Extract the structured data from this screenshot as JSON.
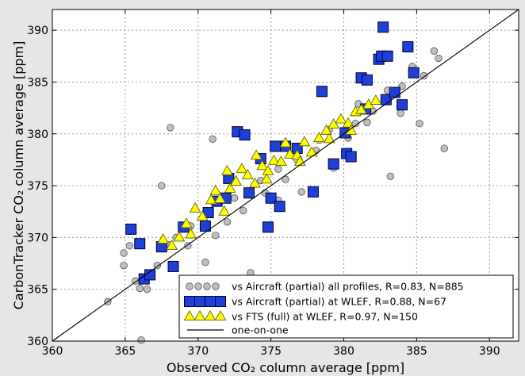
{
  "chart_data": {
    "type": "scatter",
    "title": "",
    "xlabel": "Observed CO₂ column average [ppm]",
    "ylabel": "CarbonTracker CO₂ column average [ppm]",
    "xlim": [
      360,
      392
    ],
    "ylim": [
      360,
      392
    ],
    "xticks": [
      360,
      365,
      370,
      375,
      380,
      385,
      390
    ],
    "yticks": [
      360,
      365,
      370,
      375,
      380,
      385,
      390
    ],
    "grid": true,
    "legend_position": "lower-right",
    "series": [
      {
        "name": "vs Aircraft (partial) all profiles, R=0.83, N=885",
        "marker": "circle",
        "color": "#bfbfbf",
        "edge": "#555555",
        "n": 885,
        "points": [
          [
            363.8,
            363.8
          ],
          [
            364.9,
            368.5
          ],
          [
            364.9,
            367.3
          ],
          [
            365.3,
            369.2
          ],
          [
            365.7,
            365.8
          ],
          [
            366.1,
            360.1
          ],
          [
            366.0,
            365.1
          ],
          [
            366.5,
            365.0
          ],
          [
            367.5,
            375.0
          ],
          [
            368.1,
            380.6
          ],
          [
            368.0,
            369.3
          ],
          [
            368.5,
            370.0
          ],
          [
            370.5,
            367.6
          ],
          [
            371.2,
            370.2
          ],
          [
            372.5,
            373.8
          ],
          [
            373.6,
            366.6
          ],
          [
            374.6,
            374.3
          ],
          [
            375.5,
            373.6
          ],
          [
            376.0,
            375.6
          ],
          [
            378.3,
            379.4
          ],
          [
            379.0,
            380.4
          ],
          [
            380.3,
            379.6
          ],
          [
            381.0,
            382.9
          ],
          [
            381.6,
            381.1
          ],
          [
            382.0,
            382.2
          ],
          [
            382.8,
            383.3
          ],
          [
            383.2,
            375.9
          ],
          [
            383.9,
            382.0
          ],
          [
            384.7,
            386.5
          ],
          [
            385.2,
            381.0
          ],
          [
            386.2,
            388.0
          ],
          [
            386.5,
            387.3
          ],
          [
            386.9,
            378.6
          ],
          [
            385.5,
            385.6
          ],
          [
            371.0,
            379.5
          ],
          [
            369.5,
            371.1
          ],
          [
            377.1,
            374.4
          ],
          [
            379.3,
            376.7
          ],
          [
            375.5,
            376.6
          ],
          [
            370.4,
            365.6
          ],
          [
            367.2,
            367.3
          ],
          [
            369.3,
            369.2
          ],
          [
            373.1,
            372.6
          ],
          [
            376.8,
            377.5
          ],
          [
            380.8,
            381.0
          ],
          [
            384.0,
            384.6
          ],
          [
            378.1,
            378.4
          ],
          [
            374.3,
            375.5
          ],
          [
            372.0,
            371.5
          ],
          [
            383.0,
            384.2
          ]
        ]
      },
      {
        "name": "vs Aircraft (partial) at WLEF, R=0.88, N=67",
        "marker": "square",
        "color": "#1f3fd6",
        "edge": "#00003a",
        "n": 67,
        "points": [
          [
            365.4,
            370.8
          ],
          [
            366.0,
            369.4
          ],
          [
            366.3,
            366.0
          ],
          [
            366.7,
            366.4
          ],
          [
            367.5,
            369.1
          ],
          [
            368.3,
            367.2
          ],
          [
            369.0,
            371.0
          ],
          [
            370.7,
            372.4
          ],
          [
            371.3,
            373.5
          ],
          [
            371.9,
            373.8
          ],
          [
            372.1,
            375.7
          ],
          [
            372.7,
            380.2
          ],
          [
            373.2,
            379.9
          ],
          [
            373.5,
            374.3
          ],
          [
            374.3,
            377.6
          ],
          [
            374.8,
            371.0
          ],
          [
            375.0,
            373.8
          ],
          [
            375.3,
            378.8
          ],
          [
            375.6,
            373.0
          ],
          [
            376.0,
            378.8
          ],
          [
            376.8,
            378.6
          ],
          [
            377.9,
            374.4
          ],
          [
            378.5,
            384.1
          ],
          [
            379.3,
            377.1
          ],
          [
            380.2,
            378.1
          ],
          [
            380.5,
            377.8
          ],
          [
            381.2,
            385.4
          ],
          [
            381.6,
            385.2
          ],
          [
            382.4,
            387.2
          ],
          [
            382.6,
            387.5
          ],
          [
            382.7,
            390.3
          ],
          [
            383.0,
            387.5
          ],
          [
            384.0,
            382.8
          ],
          [
            384.4,
            388.4
          ],
          [
            384.8,
            385.9
          ],
          [
            382.9,
            383.3
          ],
          [
            381.5,
            382.4
          ],
          [
            380.1,
            380.1
          ],
          [
            383.5,
            384.0
          ],
          [
            370.5,
            371.1
          ]
        ]
      },
      {
        "name": "vs FTS (full) at WLEF, R=0.97, N=150",
        "marker": "triangle",
        "color": "#ffff00",
        "edge": "#666600",
        "n": 150,
        "points": [
          [
            367.6,
            369.8
          ],
          [
            368.7,
            370.0
          ],
          [
            369.2,
            371.3
          ],
          [
            369.8,
            372.8
          ],
          [
            370.3,
            372.0
          ],
          [
            370.9,
            373.6
          ],
          [
            371.5,
            373.7
          ],
          [
            372.2,
            374.7
          ],
          [
            372.6,
            375.4
          ],
          [
            373.0,
            376.6
          ],
          [
            373.4,
            376.0
          ],
          [
            373.9,
            375.2
          ],
          [
            374.4,
            376.9
          ],
          [
            374.8,
            376.4
          ],
          [
            375.2,
            377.4
          ],
          [
            375.7,
            377.3
          ],
          [
            376.3,
            378.0
          ],
          [
            376.8,
            377.9
          ],
          [
            377.3,
            379.2
          ],
          [
            377.8,
            378.2
          ],
          [
            378.3,
            379.6
          ],
          [
            378.8,
            380.3
          ],
          [
            379.3,
            380.9
          ],
          [
            379.8,
            381.4
          ],
          [
            380.3,
            381.0
          ],
          [
            380.8,
            382.1
          ],
          [
            381.2,
            382.3
          ],
          [
            381.7,
            382.8
          ],
          [
            371.2,
            374.5
          ],
          [
            372.0,
            376.4
          ],
          [
            374.0,
            377.9
          ],
          [
            376.0,
            379.1
          ],
          [
            368.2,
            369.2
          ],
          [
            369.5,
            370.3
          ],
          [
            371.8,
            372.5
          ],
          [
            374.7,
            375.6
          ],
          [
            377.0,
            377.3
          ],
          [
            379.0,
            379.5
          ],
          [
            380.5,
            380.3
          ],
          [
            382.2,
            383.2
          ]
        ]
      },
      {
        "name": "one-on-one",
        "marker": "line",
        "color": "#000000",
        "points": [
          [
            360,
            360
          ],
          [
            392,
            392
          ]
        ]
      }
    ]
  }
}
